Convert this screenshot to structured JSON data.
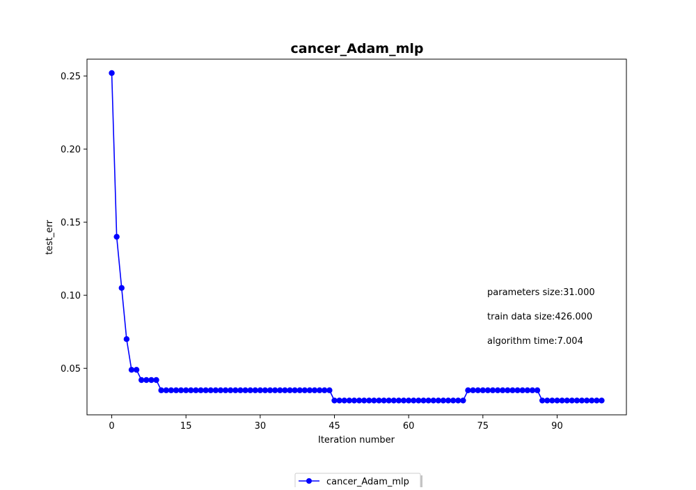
{
  "chart_data": {
    "type": "line",
    "title": "cancer_Adam_mlp",
    "xlabel": "Iteration number",
    "ylabel": "test_err",
    "xlim": [
      -5,
      104
    ],
    "ylim": [
      0.0182,
      0.2615
    ],
    "xticks": [
      0,
      15,
      30,
      45,
      60,
      75,
      90
    ],
    "yticks": [
      0.05,
      0.1,
      0.15,
      0.2,
      0.25
    ],
    "ytick_labels": [
      "0.05",
      "0.10",
      "0.15",
      "0.20",
      "0.25"
    ],
    "grid": false,
    "legend_position": "below plot, centered",
    "annotations": [
      "parameters size:31.000",
      "train data size:426.000",
      "algorithm time:7.004"
    ],
    "series": [
      {
        "name": "cancer_Adam_mlp",
        "color": "#0000ff",
        "marker": "circle",
        "x": [
          0,
          1,
          2,
          3,
          4,
          5,
          6,
          7,
          8,
          9,
          10,
          11,
          12,
          13,
          14,
          15,
          16,
          17,
          18,
          19,
          20,
          21,
          22,
          23,
          24,
          25,
          26,
          27,
          28,
          29,
          30,
          31,
          32,
          33,
          34,
          35,
          36,
          37,
          38,
          39,
          40,
          41,
          42,
          43,
          44,
          45,
          46,
          47,
          48,
          49,
          50,
          51,
          52,
          53,
          54,
          55,
          56,
          57,
          58,
          59,
          60,
          61,
          62,
          63,
          64,
          65,
          66,
          67,
          68,
          69,
          70,
          71,
          72,
          73,
          74,
          75,
          76,
          77,
          78,
          79,
          80,
          81,
          82,
          83,
          84,
          85,
          86,
          87,
          88,
          89,
          90,
          91,
          92,
          93,
          94,
          95,
          96,
          97,
          98,
          99
        ],
        "y": [
          0.252,
          0.14,
          0.105,
          0.07,
          0.049,
          0.049,
          0.042,
          0.042,
          0.042,
          0.042,
          0.035,
          0.035,
          0.035,
          0.035,
          0.035,
          0.035,
          0.035,
          0.035,
          0.035,
          0.035,
          0.035,
          0.035,
          0.035,
          0.035,
          0.035,
          0.035,
          0.035,
          0.035,
          0.035,
          0.035,
          0.035,
          0.035,
          0.035,
          0.035,
          0.035,
          0.035,
          0.035,
          0.035,
          0.035,
          0.035,
          0.035,
          0.035,
          0.035,
          0.035,
          0.035,
          0.028,
          0.028,
          0.028,
          0.028,
          0.028,
          0.028,
          0.028,
          0.028,
          0.028,
          0.028,
          0.028,
          0.028,
          0.028,
          0.028,
          0.028,
          0.028,
          0.028,
          0.028,
          0.028,
          0.028,
          0.028,
          0.028,
          0.028,
          0.028,
          0.028,
          0.028,
          0.028,
          0.035,
          0.035,
          0.035,
          0.035,
          0.035,
          0.035,
          0.035,
          0.035,
          0.035,
          0.035,
          0.035,
          0.035,
          0.035,
          0.035,
          0.035,
          0.028,
          0.028,
          0.028,
          0.028,
          0.028,
          0.028,
          0.028,
          0.028,
          0.028,
          0.028,
          0.028,
          0.028,
          0.028
        ]
      }
    ]
  }
}
